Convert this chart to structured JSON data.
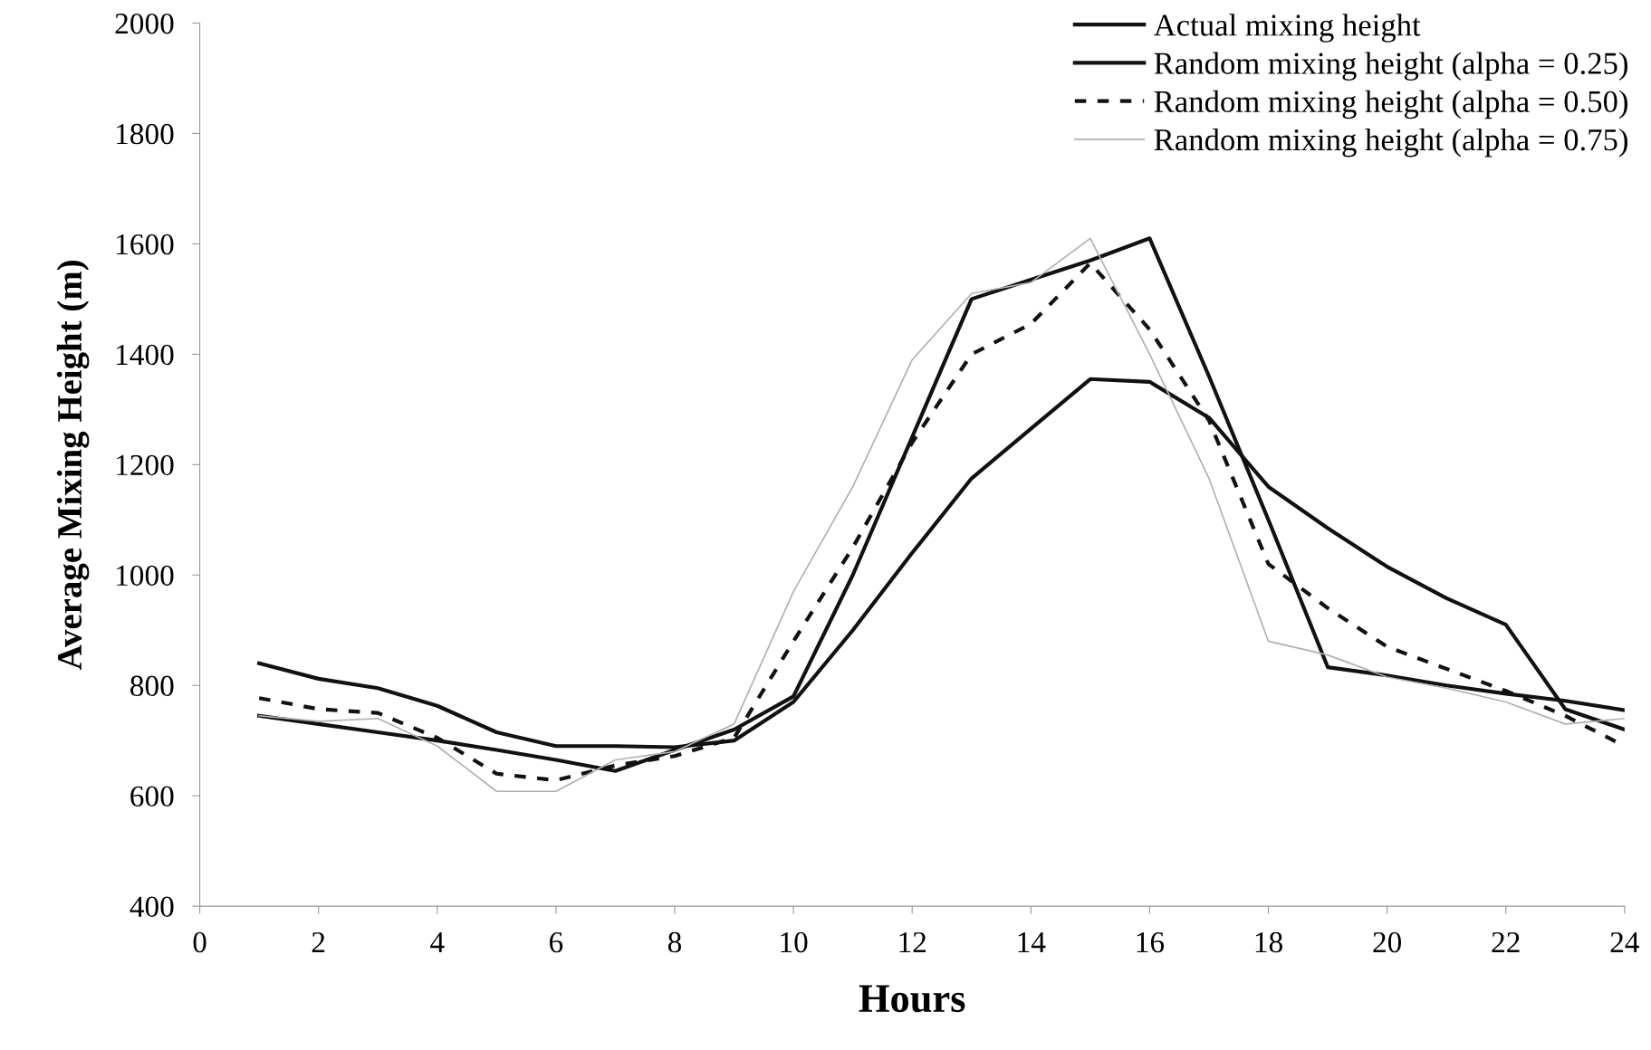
{
  "chart_data": {
    "type": "line",
    "xlabel": "Hours",
    "ylabel": "Average Mixing Height (m)",
    "x": [
      1,
      2,
      3,
      4,
      5,
      6,
      7,
      8,
      9,
      10,
      11,
      12,
      13,
      14,
      15,
      16,
      17,
      18,
      19,
      20,
      21,
      22,
      23,
      24
    ],
    "xlim": [
      0,
      24
    ],
    "xticks": [
      0,
      2,
      4,
      6,
      8,
      10,
      12,
      14,
      16,
      18,
      20,
      22,
      24
    ],
    "ylim": [
      400,
      2000
    ],
    "yticks": [
      400,
      600,
      800,
      1000,
      1200,
      1400,
      1600,
      1800,
      2000
    ],
    "grid": false,
    "legend": "top right",
    "marker": "none",
    "series": [
      {
        "name": "Actual mixing height",
        "color": "#111111",
        "line_style": "solid",
        "values": [
          840,
          812,
          795,
          763,
          715,
          690,
          690,
          688,
          700,
          770,
          900,
          1040,
          1175,
          1265,
          1355,
          1350,
          1285,
          1160,
          1085,
          1015,
          958,
          910,
          757,
          720
        ]
      },
      {
        "name": "Random mixing height (alpha = 0.25)",
        "color": "#111111",
        "line_style": "solid",
        "values": [
          745,
          730,
          715,
          700,
          683,
          665,
          645,
          683,
          720,
          780,
          1000,
          1250,
          1500,
          1535,
          1570,
          1610,
          1360,
          1100,
          833,
          818,
          800,
          785,
          772,
          755
        ]
      },
      {
        "name": "Random mixing height (alpha = 0.50)",
        "color": "#111111",
        "line_style": "dashed",
        "values": [
          777,
          757,
          750,
          705,
          640,
          628,
          655,
          672,
          705,
          880,
          1050,
          1240,
          1400,
          1455,
          1565,
          1445,
          1280,
          1020,
          940,
          870,
          830,
          790,
          745,
          690
        ]
      },
      {
        "name": "Random mixing height (alpha = 0.75)",
        "color": "#b0b0b0",
        "line_style": "solid",
        "values": [
          745,
          735,
          740,
          690,
          608,
          608,
          665,
          680,
          730,
          970,
          1160,
          1390,
          1510,
          1530,
          1610,
          1400,
          1175,
          880,
          855,
          815,
          795,
          770,
          730,
          740
        ]
      }
    ]
  }
}
